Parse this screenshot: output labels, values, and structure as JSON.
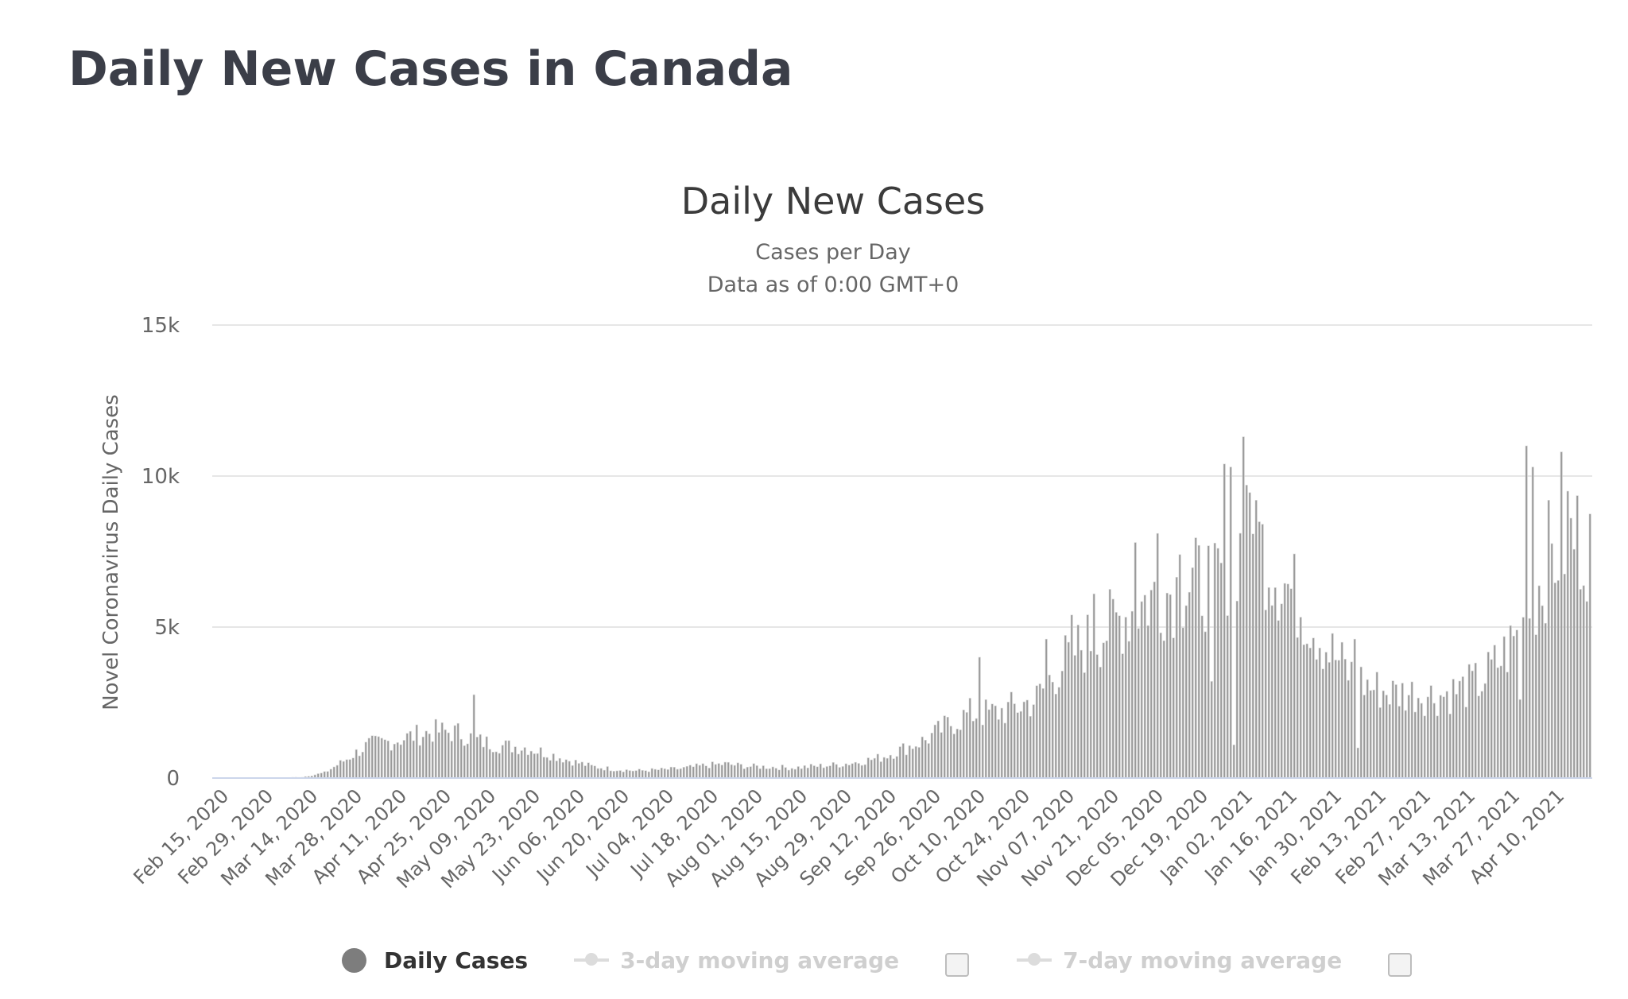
{
  "page": {
    "title": "Daily New Cases in Canada"
  },
  "chart_data": {
    "type": "bar",
    "title": "Daily New Cases",
    "subtitle_lines": [
      "Cases per Day",
      "Data as of 0:00 GMT+0"
    ],
    "xlabel": "",
    "ylabel": "Novel Coronavirus Daily Cases",
    "ylim": [
      0,
      15000
    ],
    "y_ticks": [
      {
        "value": 0,
        "label": "0"
      },
      {
        "value": 5000,
        "label": "5k"
      },
      {
        "value": 10000,
        "label": "10k"
      },
      {
        "value": 15000,
        "label": "15k"
      }
    ],
    "grid": true,
    "x_start": "Feb 15, 2020",
    "x_tick_labels": [
      "Feb 15, 2020",
      "Feb 29, 2020",
      "Mar 14, 2020",
      "Mar 28, 2020",
      "Apr 11, 2020",
      "Apr 25, 2020",
      "May 09, 2020",
      "May 23, 2020",
      "Jun 06, 2020",
      "Jun 20, 2020",
      "Jul 04, 2020",
      "Jul 18, 2020",
      "Aug 01, 2020",
      "Aug 15, 2020",
      "Aug 29, 2020",
      "Sep 12, 2020",
      "Sep 26, 2020",
      "Oct 10, 2020",
      "Oct 24, 2020",
      "Nov 07, 2020",
      "Nov 21, 2020",
      "Dec 05, 2020",
      "Dec 19, 2020",
      "Jan 02, 2021",
      "Jan 16, 2021",
      "Jan 30, 2021",
      "Feb 13, 2021",
      "Feb 27, 2021",
      "Mar 13, 2021",
      "Mar 27, 2021",
      "Apr 10, 2021"
    ],
    "series": [
      {
        "name": "Daily Cases",
        "color": "#9a9a9a",
        "weekly_anchors": [
          {
            "date": "Feb 15, 2020",
            "value": 0
          },
          {
            "date": "Feb 29, 2020",
            "value": 5
          },
          {
            "date": "Mar 07, 2020",
            "value": 10
          },
          {
            "date": "Mar 14, 2020",
            "value": 30
          },
          {
            "date": "Mar 21, 2020",
            "value": 180
          },
          {
            "date": "Mar 28, 2020",
            "value": 650
          },
          {
            "date": "Apr 04, 2020",
            "value": 1150
          },
          {
            "date": "Apr 11, 2020",
            "value": 1250
          },
          {
            "date": "Apr 18, 2020",
            "value": 1450
          },
          {
            "date": "Apr 25, 2020",
            "value": 1600
          },
          {
            "date": "May 02, 2020",
            "value": 1550
          },
          {
            "date": "May 09, 2020",
            "value": 1250
          },
          {
            "date": "May 16, 2020",
            "value": 1100
          },
          {
            "date": "May 23, 2020",
            "value": 1050
          },
          {
            "date": "May 30, 2020",
            "value": 850
          },
          {
            "date": "Jun 06, 2020",
            "value": 600
          },
          {
            "date": "Jun 13, 2020",
            "value": 400
          },
          {
            "date": "Jun 20, 2020",
            "value": 300
          },
          {
            "date": "Jun 27, 2020",
            "value": 250
          },
          {
            "date": "Jul 04, 2020",
            "value": 280
          },
          {
            "date": "Jul 11, 2020",
            "value": 320
          },
          {
            "date": "Jul 18, 2020",
            "value": 420
          },
          {
            "date": "Jul 25, 2020",
            "value": 480
          },
          {
            "date": "Aug 01, 2020",
            "value": 400
          },
          {
            "date": "Aug 08, 2020",
            "value": 380
          },
          {
            "date": "Aug 15, 2020",
            "value": 350
          },
          {
            "date": "Aug 22, 2020",
            "value": 400
          },
          {
            "date": "Aug 29, 2020",
            "value": 450
          },
          {
            "date": "Sep 05, 2020",
            "value": 550
          },
          {
            "date": "Sep 12, 2020",
            "value": 700
          },
          {
            "date": "Sep 19, 2020",
            "value": 1000
          },
          {
            "date": "Sep 26, 2020",
            "value": 1300
          },
          {
            "date": "Oct 03, 2020",
            "value": 1800
          },
          {
            "date": "Oct 10, 2020",
            "value": 2200
          },
          {
            "date": "Oct 17, 2020",
            "value": 2200
          },
          {
            "date": "Oct 24, 2020",
            "value": 2400
          },
          {
            "date": "Oct 31, 2020",
            "value": 2700
          },
          {
            "date": "Nov 07, 2020",
            "value": 3800
          },
          {
            "date": "Nov 14, 2020",
            "value": 4500
          },
          {
            "date": "Nov 21, 2020",
            "value": 5000
          },
          {
            "date": "Nov 28, 2020",
            "value": 5600
          },
          {
            "date": "Dec 05, 2020",
            "value": 6100
          },
          {
            "date": "Dec 12, 2020",
            "value": 6400
          },
          {
            "date": "Dec 19, 2020",
            "value": 6600
          },
          {
            "date": "Dec 26, 2020",
            "value": 6800
          },
          {
            "date": "Jan 02, 2021",
            "value": 7800
          },
          {
            "date": "Jan 09, 2021",
            "value": 8000
          },
          {
            "date": "Jan 16, 2021",
            "value": 6800
          },
          {
            "date": "Jan 23, 2021",
            "value": 5800
          },
          {
            "date": "Jan 30, 2021",
            "value": 4500
          },
          {
            "date": "Feb 06, 2021",
            "value": 3600
          },
          {
            "date": "Feb 13, 2021",
            "value": 3100
          },
          {
            "date": "Feb 20, 2021",
            "value": 2900
          },
          {
            "date": "Feb 27, 2021",
            "value": 2900
          },
          {
            "date": "Mar 06, 2021",
            "value": 2800
          },
          {
            "date": "Mar 13, 2021",
            "value": 3000
          },
          {
            "date": "Mar 20, 2021",
            "value": 3300
          },
          {
            "date": "Mar 27, 2021",
            "value": 4200
          },
          {
            "date": "Apr 03, 2021",
            "value": 5300
          },
          {
            "date": "Apr 10, 2021",
            "value": 7400
          },
          {
            "date": "Apr 17, 2021",
            "value": 8300
          },
          {
            "date": "Apr 23, 2021",
            "value": 8000
          }
        ],
        "spikes": [
          {
            "date": "May 07, 2020",
            "value": 2760
          },
          {
            "date": "Oct 13, 2020",
            "value": 4000
          },
          {
            "date": "Nov 03, 2020",
            "value": 4600
          },
          {
            "date": "Nov 11, 2020",
            "value": 5400
          },
          {
            "date": "Nov 18, 2020",
            "value": 6100
          },
          {
            "date": "Dec 01, 2020",
            "value": 7800
          },
          {
            "date": "Dec 08, 2020",
            "value": 8100
          },
          {
            "date": "Dec 15, 2020",
            "value": 7400
          },
          {
            "date": "Dec 25, 2020",
            "value": 3200
          },
          {
            "date": "Dec 29, 2020",
            "value": 10400
          },
          {
            "date": "Dec 31, 2020",
            "value": 10300
          },
          {
            "date": "Jan 01, 2021",
            "value": 1100
          },
          {
            "date": "Jan 04, 2021",
            "value": 11300
          },
          {
            "date": "Jan 05, 2021",
            "value": 9700
          },
          {
            "date": "Jan 08, 2021",
            "value": 9200
          },
          {
            "date": "Feb 08, 2021",
            "value": 4600
          },
          {
            "date": "Feb 09, 2021",
            "value": 1000
          },
          {
            "date": "Apr 01, 2021",
            "value": 2600
          },
          {
            "date": "Apr 03, 2021",
            "value": 11000
          },
          {
            "date": "Apr 05, 2021",
            "value": 10300
          },
          {
            "date": "Apr 10, 2021",
            "value": 9200
          },
          {
            "date": "Apr 14, 2021",
            "value": 10800
          },
          {
            "date": "Apr 16, 2021",
            "value": 9500
          }
        ]
      },
      {
        "name": "3-day moving average",
        "visible": false
      },
      {
        "name": "7-day moving average",
        "visible": false
      }
    ],
    "legend_placement": "bottom-center"
  },
  "legend": {
    "daily": "Daily Cases",
    "ma3": "3-day moving average",
    "ma7": "7-day moving average"
  }
}
